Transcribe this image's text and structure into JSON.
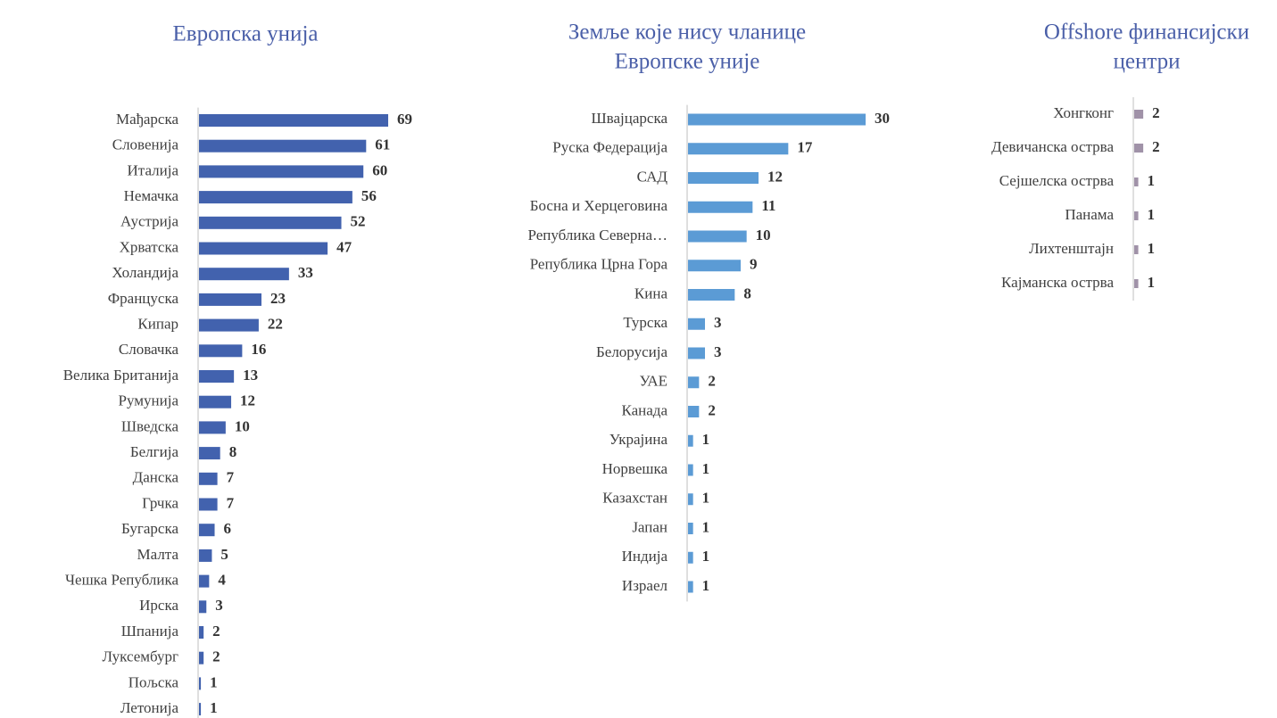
{
  "chart_data": [
    {
      "type": "barh",
      "title": [
        "Европска унија"
      ],
      "color": "#4262ae",
      "xlim": [
        0,
        69
      ],
      "categories": [
        "Мађарска",
        "Словенија",
        "Италија",
        "Немачка",
        "Аустрија",
        "Хрватска",
        "Холандија",
        "Француска",
        "Кипар",
        "Словачка",
        "Велика Британија",
        "Румунија",
        "Шведска",
        "Белгија",
        "Данска",
        "Грчка",
        "Бугарска",
        "Малта",
        "Чешка Република",
        "Ирска",
        "Шпанија",
        "Луксембург",
        "Пољска",
        "Летонија"
      ],
      "values": [
        69,
        61,
        60,
        56,
        52,
        47,
        33,
        23,
        22,
        16,
        13,
        12,
        10,
        8,
        7,
        7,
        6,
        5,
        4,
        3,
        2,
        2,
        1,
        1
      ]
    },
    {
      "type": "barh",
      "title": [
        "Земље које нису чланице",
        "Европске уније"
      ],
      "color": "#5b9bd5",
      "xlim": [
        0,
        30
      ],
      "categories": [
        "Швајцарска",
        "Руска Федерација",
        "САД",
        "Босна и Херцеговина",
        "Република Северна…",
        "Република Црна Гора",
        "Кина",
        "Турска",
        "Белорусија",
        "УАЕ",
        "Канада",
        "Украјина",
        "Норвешка",
        "Казахстан",
        "Јапан",
        "Индија",
        "Израел"
      ],
      "values": [
        30,
        17,
        12,
        11,
        10,
        9,
        8,
        3,
        3,
        2,
        2,
        1,
        1,
        1,
        1,
        1,
        1
      ]
    },
    {
      "type": "barh",
      "title": [
        "Offshore финансијски",
        "центри"
      ],
      "color": "#a092a8",
      "xlim": [
        0,
        36
      ],
      "categories": [
        "Хонгконг",
        "Девичанска острва",
        "Сејшелска острва",
        "Панама",
        "Лихтенштајн",
        "Кајманска острва"
      ],
      "values": [
        2,
        2,
        1,
        1,
        1,
        1
      ]
    }
  ]
}
